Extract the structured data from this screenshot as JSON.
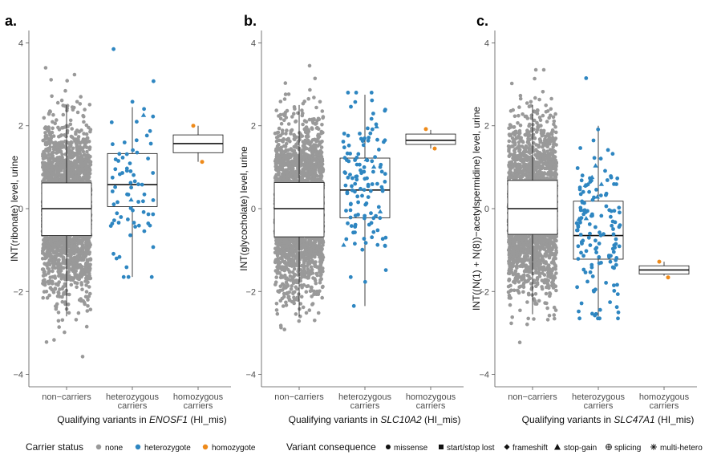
{
  "chart_data": [
    {
      "type": "box",
      "panel_label": "a.",
      "ylabel": "INT(ribonate) level, urine",
      "xlabel_prefix": "Qualifying variants in ",
      "gene": "ENOSF1",
      "xlabel_suffix": " (HI_mis)",
      "ylim": [
        -4.3,
        4.3
      ],
      "yticks": [
        -4,
        -2,
        0,
        2,
        4
      ],
      "categories": [
        "non−carriers",
        "heterozygous carriers",
        "homozygous carriers"
      ],
      "boxes": [
        {
          "category": "non−carriers",
          "q1": -0.65,
          "median": 0.0,
          "q3": 0.62,
          "whisker_low": -2.6,
          "whisker_high": 2.5,
          "n_points_approx": 6000,
          "point_min": -3.75,
          "point_max": 3.4
        },
        {
          "category": "heterozygous carriers",
          "q1": 0.05,
          "median": 0.58,
          "q3": 1.33,
          "whisker_low": -1.65,
          "whisker_high": 2.45,
          "n_points_approx": 75,
          "point_min": -1.65,
          "point_max": 3.85
        },
        {
          "category": "homozygous carriers",
          "q1": 1.35,
          "median": 1.57,
          "q3": 1.78,
          "whisker_low": 1.13,
          "whisker_high": 2.0,
          "n_points_approx": 2,
          "point_values": [
            2.0,
            1.13
          ]
        }
      ]
    },
    {
      "type": "box",
      "panel_label": "b.",
      "ylabel": "INT(glycocholate) level, urine",
      "xlabel_prefix": "Qualifying variants in ",
      "gene": "SLC10A2",
      "xlabel_suffix": " (HI_mis)",
      "ylim": [
        -4.3,
        4.3
      ],
      "yticks": [
        -4,
        -2,
        0,
        2,
        4
      ],
      "categories": [
        "non−carriers",
        "heterozygous carriers",
        "homozygous carriers"
      ],
      "boxes": [
        {
          "category": "non−carriers",
          "q1": -0.68,
          "median": 0.0,
          "q3": 0.63,
          "whisker_low": -2.6,
          "whisker_high": 2.5,
          "n_points_approx": 6000,
          "point_min": -3.55,
          "point_max": 3.45
        },
        {
          "category": "heterozygous carriers",
          "q1": -0.22,
          "median": 0.45,
          "q3": 1.22,
          "whisker_low": -2.35,
          "whisker_high": 2.75,
          "n_points_approx": 130,
          "point_min": -2.35,
          "point_max": 2.8
        },
        {
          "category": "homozygous carriers",
          "q1": 1.55,
          "median": 1.65,
          "q3": 1.8,
          "whisker_low": 1.45,
          "whisker_high": 1.9,
          "n_points_approx": 2,
          "point_values": [
            1.92,
            1.45
          ]
        }
      ]
    },
    {
      "type": "box",
      "panel_label": "c.",
      "ylabel": "INT((N(1) + N(8))−acetylspermidine) level, urine",
      "xlabel_prefix": "Qualifying variants in ",
      "gene": "SLC47A1",
      "xlabel_suffix": " (HI_mis)",
      "ylim": [
        -4.3,
        4.3
      ],
      "yticks": [
        -4,
        -2,
        0,
        2,
        4
      ],
      "categories": [
        "non−carriers",
        "heterozygous carriers",
        "homozygous carriers"
      ],
      "boxes": [
        {
          "category": "non−carriers",
          "q1": -0.62,
          "median": 0.0,
          "q3": 0.68,
          "whisker_low": -2.55,
          "whisker_high": 2.5,
          "n_points_approx": 6000,
          "point_min": -3.35,
          "point_max": 3.35
        },
        {
          "category": "heterozygous carriers",
          "q1": -1.22,
          "median": -0.65,
          "q3": 0.18,
          "whisker_low": -2.6,
          "whisker_high": 2.0,
          "n_points_approx": 150,
          "point_min": -2.65,
          "point_max": 3.15
        },
        {
          "category": "homozygous carriers",
          "q1": -1.58,
          "median": -1.48,
          "q3": -1.38,
          "whisker_low": -1.62,
          "whisker_high": -1.28,
          "n_points_approx": 2,
          "point_values": [
            -1.28,
            -1.66
          ]
        }
      ]
    }
  ],
  "legend": {
    "carrier_title": "Carrier status",
    "carrier_items": [
      {
        "label": "none",
        "color": "#999999"
      },
      {
        "label": "heterozygote",
        "color": "#2e86c1"
      },
      {
        "label": "homozygote",
        "color": "#ee8a1a"
      }
    ],
    "consequence_title": "Variant consequence",
    "consequence_items": [
      {
        "label": "missense",
        "shape": "circle"
      },
      {
        "label": "start/stop lost",
        "shape": "square"
      },
      {
        "label": "frameshift",
        "shape": "diamond"
      },
      {
        "label": "stop-gain",
        "shape": "triangle"
      },
      {
        "label": "splicing",
        "shape": "circle-plus"
      },
      {
        "label": "multi-hetero",
        "shape": "asterisk"
      }
    ]
  }
}
